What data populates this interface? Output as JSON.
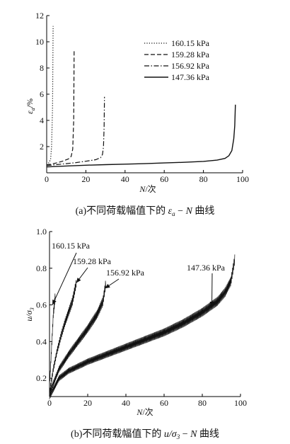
{
  "chart_data": [
    {
      "type": "line",
      "panel_label": "(a)",
      "title": "不同荷载幅值下的 ε_a − N 曲线",
      "caption_parts": {
        "open": "(",
        "letter": "a",
        "close": ")",
        "text": "不同荷载幅值下的 ",
        "var": "ε",
        "sub": "a",
        "tail": " − N 曲线"
      },
      "xlabel": {
        "var": "N",
        "unit": "/次"
      },
      "ylabel": {
        "var": "ε",
        "sub": "a",
        "unit": "/%"
      },
      "xlim": [
        0,
        100
      ],
      "ylim": [
        0,
        12
      ],
      "x_ticks": [
        0,
        20,
        40,
        60,
        80,
        100
      ],
      "y_ticks": [
        2,
        4,
        6,
        8,
        10,
        12
      ],
      "grid": false,
      "legend_position": "top-right",
      "series": [
        {
          "name": "160.15 kPa",
          "style": "dotted",
          "x": [
            0,
            1,
            2,
            2.5,
            3,
            3.3
          ],
          "y": [
            0.6,
            0.75,
            1.0,
            2.0,
            5.0,
            11.2
          ]
        },
        {
          "name": "159.28 kPa",
          "style": "dashed",
          "x": [
            0,
            2,
            5,
            8,
            11,
            12.5,
            13.3,
            13.8,
            14
          ],
          "y": [
            0.6,
            0.65,
            0.75,
            0.88,
            1.05,
            1.25,
            1.8,
            4.0,
            9.4
          ]
        },
        {
          "name": "156.92 kPa",
          "style": "dashdot",
          "x": [
            0,
            5,
            10,
            15,
            20,
            25,
            27.5,
            28.5,
            29,
            29.3,
            29.5
          ],
          "y": [
            0.55,
            0.62,
            0.7,
            0.78,
            0.88,
            1.0,
            1.15,
            1.4,
            2.0,
            3.5,
            5.8
          ]
        },
        {
          "name": "147.36 kPa",
          "style": "solid",
          "x": [
            0,
            10,
            20,
            30,
            40,
            50,
            60,
            70,
            80,
            87,
            91,
            93,
            94.5,
            95.5,
            96,
            96.3
          ],
          "y": [
            0.45,
            0.52,
            0.58,
            0.62,
            0.66,
            0.7,
            0.75,
            0.8,
            0.87,
            0.97,
            1.1,
            1.3,
            1.7,
            2.6,
            3.6,
            5.2
          ]
        }
      ]
    },
    {
      "type": "line",
      "panel_label": "(b)",
      "title": "不同荷载幅值下的 u/σ3 − N 曲线",
      "caption_parts": {
        "open": "(",
        "letter": "b",
        "close": ")",
        "text": "不同荷载幅值下的 ",
        "var": "u/σ",
        "sub": "3",
        "tail": " − N 曲线"
      },
      "xlabel": {
        "var": "N",
        "unit": "/次"
      },
      "ylabel": {
        "var": "u/σ",
        "sub": "3"
      },
      "xlim": [
        0,
        100
      ],
      "ylim": [
        0.1,
        1.0
      ],
      "x_ticks": [
        0,
        20,
        40,
        60,
        80,
        100
      ],
      "y_ticks": [
        0.2,
        0.4,
        0.6,
        0.8,
        1.0
      ],
      "grid": false,
      "band_amplitude": 0.025,
      "series": [
        {
          "name": "160.15 kPa",
          "x": [
            0,
            0.5,
            1,
            1.5,
            2,
            2.5,
            3
          ],
          "y": [
            0.15,
            0.25,
            0.35,
            0.45,
            0.55,
            0.6,
            0.65
          ]
        },
        {
          "name": "159.28 kPa",
          "x": [
            0,
            2,
            4,
            6,
            8,
            10,
            12,
            14
          ],
          "y": [
            0.12,
            0.25,
            0.35,
            0.43,
            0.5,
            0.56,
            0.62,
            0.72
          ]
        },
        {
          "name": "156.92 kPa",
          "x": [
            0,
            5,
            10,
            15,
            20,
            25,
            28,
            29.5
          ],
          "y": [
            0.12,
            0.25,
            0.33,
            0.4,
            0.47,
            0.55,
            0.62,
            0.72
          ]
        },
        {
          "name": "147.36 kPa",
          "x": [
            0,
            5,
            10,
            20,
            30,
            40,
            50,
            60,
            70,
            80,
            88,
            92,
            95,
            97
          ],
          "y": [
            0.1,
            0.2,
            0.24,
            0.29,
            0.33,
            0.37,
            0.41,
            0.45,
            0.5,
            0.56,
            0.62,
            0.67,
            0.73,
            0.85
          ]
        }
      ],
      "annotations": [
        {
          "text": "160.15 kPa",
          "target": [
            1.5,
            0.6
          ]
        },
        {
          "text": "159.28 kPa",
          "target": [
            14,
            0.72
          ]
        },
        {
          "text": "156.92 kPa",
          "target": [
            29,
            0.69
          ]
        },
        {
          "text": "147.36 kPa",
          "target": [
            85,
            0.59
          ]
        }
      ]
    }
  ]
}
